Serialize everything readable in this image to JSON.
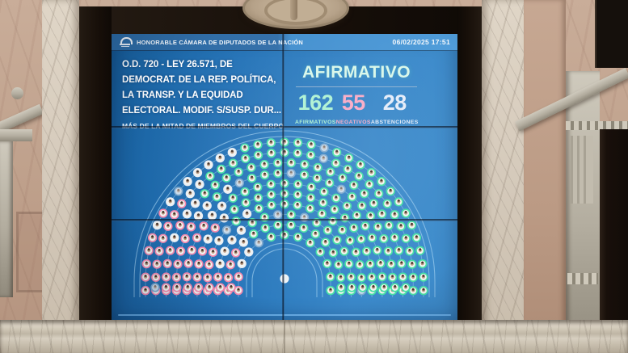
{
  "screen": {
    "header": {
      "title": "HONORABLE CÁMARA DE DIPUTADOS DE LA NACIÓN",
      "timestamp": "06/02/2025 17:51"
    },
    "motion": {
      "lines": [
        "O.D. 720 - LEY 26.571, DE",
        "DEMOCRAT. DE LA REP. POLÍTICA,",
        "LA TRANSP. Y LA EQUIDAD",
        "ELECTORAL. MODIF. S/SUSP. DUR..."
      ],
      "note": "MÁS DE LA MITAD DE MIEMBROS DEL CUERPO"
    },
    "result": {
      "outcome": "AFIRMATIVO",
      "outcome_color": "#d9f8ea"
    }
  },
  "chart_data": {
    "type": "parliament-hemicycle",
    "title": "AFIRMATIVO",
    "total_seats": 257,
    "rows": 10,
    "votes": [
      {
        "label": "AFIRMATIVOS",
        "value": 162,
        "ring_color": "#46e0a4",
        "text_color": "#aef2d3"
      },
      {
        "label": "NEGATIVOS",
        "value": 55,
        "ring_color": "#f389ae",
        "text_color": "#f9abc6"
      },
      {
        "label": "ABSTENCIONES",
        "value": 28,
        "ring_color": "#e9eef4",
        "text_color": "#e4ecf9"
      }
    ],
    "seats_without_vote": 12,
    "seat_fill": "#f2f4f1",
    "absent_ring_color": "#7fa9cd",
    "absent_fill": "#c9dcec",
    "arc_color": "rgba(173,216,245,0.55)",
    "layout": {
      "shape": "semicircle",
      "legend": "below-values",
      "screen_background": "#2a7ac0"
    }
  }
}
